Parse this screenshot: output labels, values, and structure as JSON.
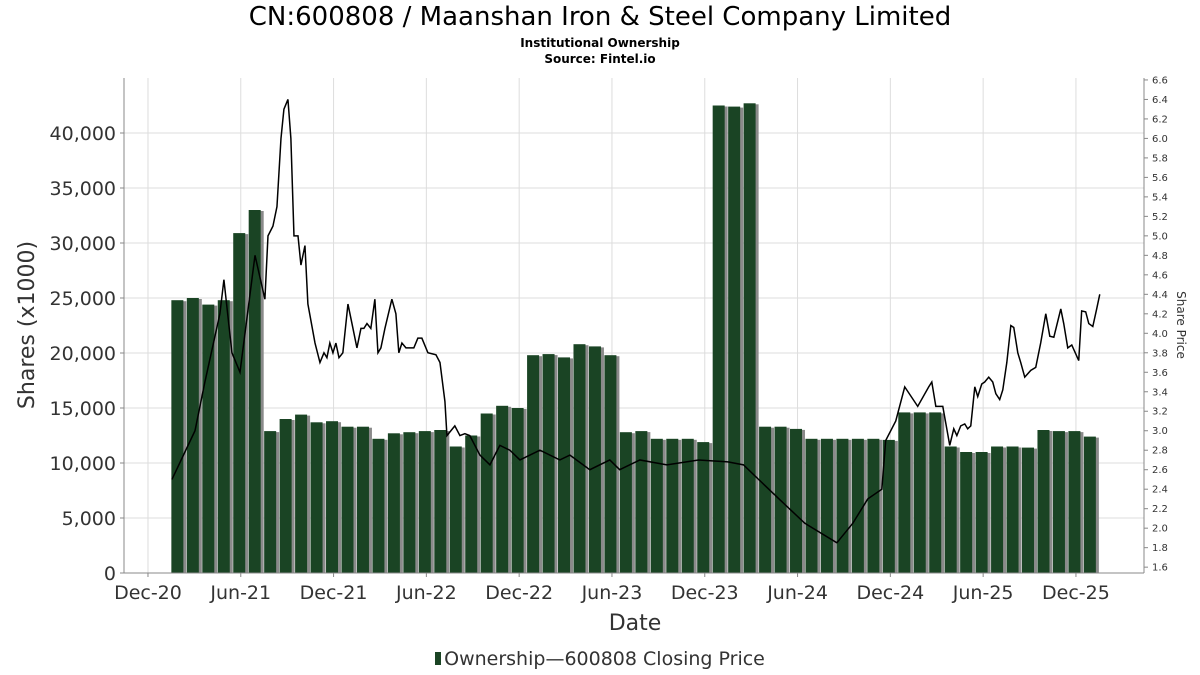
{
  "chart_data": {
    "type": "bar",
    "title": "CN:600808 / Maanshan Iron & Steel Company Limited",
    "subtitle": "Institutional Ownership",
    "source": "Source: Fintel.io",
    "xlabel": "Date",
    "ylabel": "Shares (x1000)",
    "y2label": "Share Price",
    "x_unit": "months since Dec-2020",
    "xlim": [
      -1.55,
      64.4
    ],
    "ylim": [
      0,
      45000
    ],
    "y2lim": [
      1.54,
      6.62
    ],
    "grid": true,
    "legend_placement": "bottom",
    "x_ticks": [
      {
        "m": 0,
        "label": "Dec-20"
      },
      {
        "m": 6,
        "label": "Jun-21"
      },
      {
        "m": 12,
        "label": "Dec-21"
      },
      {
        "m": 18,
        "label": "Jun-22"
      },
      {
        "m": 24,
        "label": "Dec-22"
      },
      {
        "m": 30,
        "label": "Jun-23"
      },
      {
        "m": 36,
        "label": "Dec-23"
      },
      {
        "m": 42,
        "label": "Jun-24"
      },
      {
        "m": 48,
        "label": "Dec-24"
      },
      {
        "m": 54,
        "label": "Jun-25"
      },
      {
        "m": 60,
        "label": "Dec-25"
      }
    ],
    "y_ticks": [
      {
        "v": 0,
        "label": "0"
      },
      {
        "v": 5000,
        "label": "5,000"
      },
      {
        "v": 10000,
        "label": "10,000"
      },
      {
        "v": 15000,
        "label": "15,000"
      },
      {
        "v": 20000,
        "label": "20,000"
      },
      {
        "v": 25000,
        "label": "25,000"
      },
      {
        "v": 30000,
        "label": "30,000"
      },
      {
        "v": 35000,
        "label": "35,000"
      },
      {
        "v": 40000,
        "label": "40,000"
      }
    ],
    "y2_ticks": [
      "1.6",
      "1.8",
      "2.0",
      "2.2",
      "2.4",
      "2.6",
      "2.8",
      "3.0",
      "3.2",
      "3.4",
      "3.6",
      "3.8",
      "4.0",
      "4.2",
      "4.4",
      "4.6",
      "4.8",
      "5.0",
      "5.2",
      "5.4",
      "5.6",
      "5.8",
      "6.0",
      "6.2",
      "6.4",
      "6.6"
    ],
    "series": [
      {
        "name": "Ownership",
        "type": "bar",
        "color": "#1a4424",
        "first_month": 1.9,
        "step_months": 1.0,
        "values": [
          24800,
          25000,
          24400,
          24800,
          30900,
          33000,
          12900,
          14000,
          14400,
          13700,
          13800,
          13300,
          13300,
          12200,
          12700,
          12800,
          12900,
          13000,
          11500,
          12500,
          14500,
          15200,
          15000,
          19800,
          19900,
          19600,
          20800,
          20600,
          19800,
          12800,
          12900,
          12200,
          12200,
          12200,
          11900,
          42500,
          42400,
          42700,
          13300,
          13300,
          13100,
          12200,
          12200,
          12200,
          12200,
          12200,
          12100,
          14600,
          14600,
          14600,
          11500,
          11000,
          11000,
          11500,
          11500,
          11400,
          13000,
          12900,
          12900,
          12400
        ]
      },
      {
        "name": "600808 Closing Price",
        "type": "line",
        "color": "#000000",
        "points": [
          [
            1.55,
            2.5
          ],
          [
            3.04,
            3.0
          ],
          [
            3.68,
            3.5
          ],
          [
            4.65,
            4.2
          ],
          [
            4.91,
            4.55
          ],
          [
            5.43,
            3.8
          ],
          [
            5.95,
            3.6
          ],
          [
            6.92,
            4.8
          ],
          [
            7.56,
            4.35
          ],
          [
            7.76,
            5.0
          ],
          [
            8.08,
            5.1
          ],
          [
            8.34,
            5.3
          ],
          [
            8.6,
            6.0
          ],
          [
            8.79,
            6.3
          ],
          [
            9.05,
            6.4
          ],
          [
            9.24,
            6.0
          ],
          [
            9.44,
            5.0
          ],
          [
            9.7,
            5.0
          ],
          [
            9.89,
            4.7
          ],
          [
            10.15,
            4.9
          ],
          [
            10.34,
            4.3
          ],
          [
            10.8,
            3.9
          ],
          [
            11.12,
            3.7
          ],
          [
            11.38,
            3.8
          ],
          [
            11.57,
            3.75
          ],
          [
            11.76,
            3.9
          ],
          [
            11.96,
            3.8
          ],
          [
            12.15,
            3.9
          ],
          [
            12.35,
            3.75
          ],
          [
            12.6,
            3.8
          ],
          [
            12.93,
            4.3
          ],
          [
            13.19,
            4.1
          ],
          [
            13.51,
            3.85
          ],
          [
            13.77,
            4.05
          ],
          [
            13.96,
            4.05
          ],
          [
            14.16,
            4.1
          ],
          [
            14.41,
            4.05
          ],
          [
            14.67,
            4.35
          ],
          [
            14.87,
            3.8
          ],
          [
            15.06,
            3.85
          ],
          [
            15.32,
            4.05
          ],
          [
            15.77,
            4.35
          ],
          [
            16.03,
            4.2
          ],
          [
            16.22,
            3.8
          ],
          [
            16.42,
            3.9
          ],
          [
            16.68,
            3.85
          ],
          [
            17.19,
            3.85
          ],
          [
            17.45,
            3.95
          ],
          [
            17.71,
            3.95
          ],
          [
            18.1,
            3.8
          ],
          [
            18.62,
            3.78
          ],
          [
            18.88,
            3.7
          ],
          [
            19.2,
            3.3
          ],
          [
            19.33,
            2.95
          ],
          [
            19.84,
            3.05
          ],
          [
            20.17,
            2.95
          ],
          [
            20.49,
            2.97
          ],
          [
            20.81,
            2.95
          ],
          [
            21.46,
            2.75
          ],
          [
            22.11,
            2.65
          ],
          [
            22.75,
            2.85
          ],
          [
            23.4,
            2.8
          ],
          [
            24.05,
            2.7
          ],
          [
            25.34,
            2.8
          ],
          [
            26.63,
            2.7
          ],
          [
            27.28,
            2.75
          ],
          [
            28.57,
            2.6
          ],
          [
            29.86,
            2.7
          ],
          [
            30.5,
            2.6
          ],
          [
            31.8,
            2.7
          ],
          [
            33.55,
            2.65
          ],
          [
            35.6,
            2.7
          ],
          [
            37.5,
            2.68
          ],
          [
            38.5,
            2.65
          ],
          [
            40.47,
            2.35
          ],
          [
            42.47,
            2.05
          ],
          [
            44.54,
            1.85
          ],
          [
            45.57,
            2.05
          ],
          [
            46.54,
            2.3
          ],
          [
            47.45,
            2.4
          ],
          [
            47.7,
            2.9
          ],
          [
            48.35,
            3.1
          ],
          [
            48.93,
            3.45
          ],
          [
            49.77,
            3.25
          ],
          [
            50.48,
            3.45
          ],
          [
            50.68,
            3.5
          ],
          [
            50.94,
            3.25
          ],
          [
            51.39,
            3.25
          ],
          [
            51.84,
            2.85
          ],
          [
            52.1,
            3.02
          ],
          [
            52.3,
            2.95
          ],
          [
            52.55,
            3.05
          ],
          [
            52.81,
            3.07
          ],
          [
            53.0,
            3.02
          ],
          [
            53.2,
            3.05
          ],
          [
            53.46,
            3.45
          ],
          [
            53.65,
            3.35
          ],
          [
            53.91,
            3.48
          ],
          [
            54.1,
            3.5
          ],
          [
            54.36,
            3.55
          ],
          [
            54.62,
            3.5
          ],
          [
            54.82,
            3.38
          ],
          [
            55.07,
            3.32
          ],
          [
            55.27,
            3.42
          ],
          [
            55.53,
            3.7
          ],
          [
            55.79,
            4.08
          ],
          [
            55.98,
            4.06
          ],
          [
            56.24,
            3.8
          ],
          [
            56.43,
            3.7
          ],
          [
            56.69,
            3.55
          ],
          [
            57.08,
            3.62
          ],
          [
            57.4,
            3.65
          ],
          [
            57.72,
            3.9
          ],
          [
            58.05,
            4.2
          ],
          [
            58.31,
            3.97
          ],
          [
            58.57,
            3.96
          ],
          [
            59.02,
            4.25
          ],
          [
            59.21,
            4.1
          ],
          [
            59.47,
            3.85
          ],
          [
            59.73,
            3.88
          ],
          [
            60.18,
            3.72
          ],
          [
            60.37,
            4.23
          ],
          [
            60.63,
            4.22
          ],
          [
            60.83,
            4.1
          ],
          [
            61.09,
            4.07
          ],
          [
            61.34,
            4.25
          ],
          [
            61.54,
            4.4
          ]
        ]
      }
    ],
    "legend": {
      "ownership": "Ownership",
      "dash": "—",
      "price": "600808 Closing Price"
    }
  }
}
